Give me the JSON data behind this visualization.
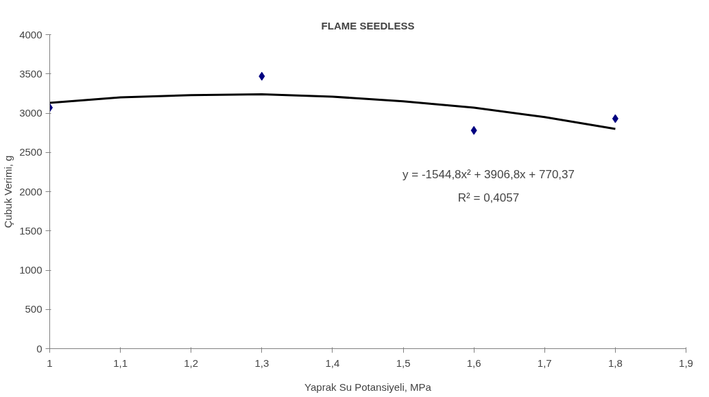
{
  "chart_data": {
    "type": "scatter",
    "title": "FLAME SEEDLESS",
    "xlabel": "Yaprak Su Potansiyeli, MPa",
    "ylabel": "Çubuk Verimi, g",
    "x": [
      1,
      1.3,
      1.6,
      1.8
    ],
    "series": [
      {
        "color": "#000080",
        "marker": "diamond",
        "values": [
          3070,
          3470,
          2780,
          2930
        ]
      },
      {
        "type": "line",
        "color": "#000000",
        "marker": "none",
        "x": [
          1,
          1.1,
          1.2,
          1.3,
          1.4,
          1.5,
          1.6,
          1.7,
          1.8
        ],
        "values": [
          3130,
          3200,
          3230,
          3240,
          3210,
          3150,
          3070,
          2950,
          2800
        ]
      }
    ],
    "xlim": [
      1,
      1.9
    ],
    "xticks": [
      1,
      {
        "value": 1.1,
        "label": "1,1"
      },
      {
        "value": 1.2,
        "label": "1,2"
      },
      {
        "value": 1.3,
        "label": "1,3"
      },
      {
        "value": 1.4,
        "label": "1,4"
      },
      {
        "value": 1.5,
        "label": "1,5"
      },
      {
        "value": 1.6,
        "label": "1,6"
      },
      {
        "value": 1.7,
        "label": "1,7"
      },
      {
        "value": 1.8,
        "label": "1,8"
      },
      {
        "value": 1.9,
        "label": "1,9"
      }
    ],
    "ylim": [
      0,
      4000
    ],
    "yticks": [
      0,
      500,
      1000,
      1500,
      2000,
      2500,
      3000,
      3500,
      4000
    ],
    "grid": false,
    "annotations": [
      "y = -1544,8x² + 3906,8x + 770,37",
      "R² = 0,4057"
    ]
  }
}
